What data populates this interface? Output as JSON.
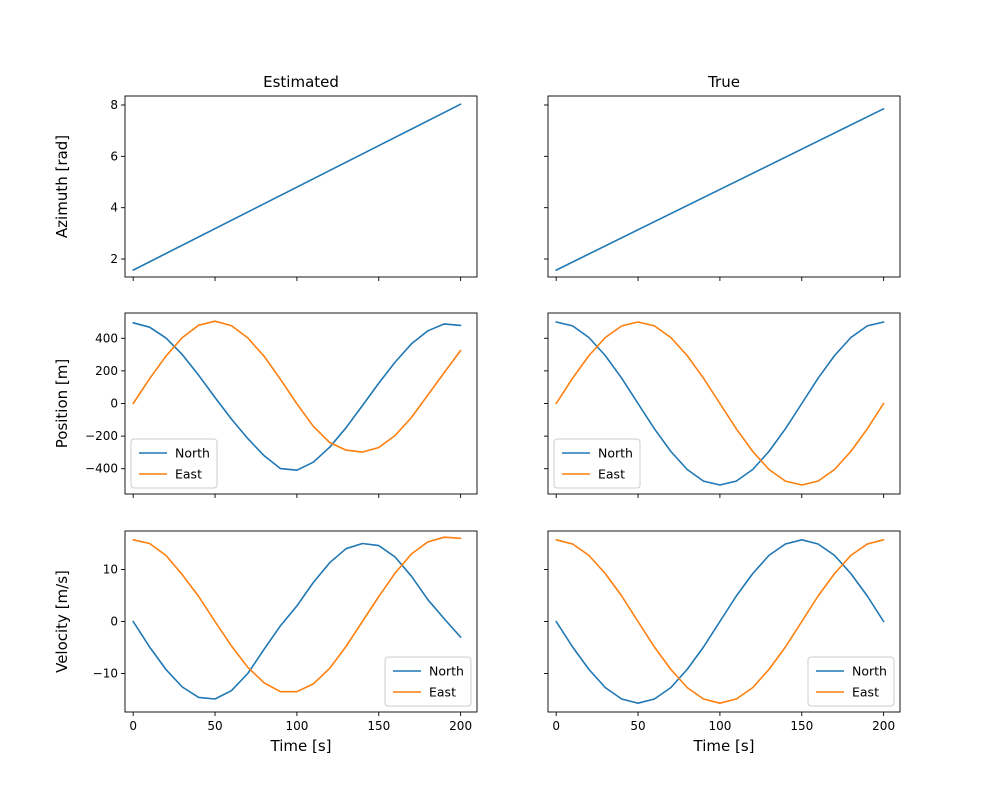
{
  "chart_data": {
    "type": "line",
    "layout": "3x2 subplot grid, shared x axis (Time), shared y axis per row",
    "column_titles": [
      "Estimated",
      "True"
    ],
    "xlabel": "Time [s]",
    "xlim": [
      -5,
      210
    ],
    "xticks": [
      0,
      50,
      100,
      150,
      200
    ],
    "grid": false,
    "colors": {
      "North": "#1f77b4",
      "East": "#ff7f0e",
      "Azimuth": "#1f77b4"
    },
    "rows": [
      {
        "ylabel": "Azimuth [rad]",
        "ylim": [
          1.3,
          8.35
        ],
        "yticks": [
          2,
          4,
          6,
          8
        ],
        "legend": null,
        "panels": [
          {
            "column": "Estimated",
            "series": [
              {
                "legend_label": null,
                "key": "Azimuth",
                "x": [
                  0,
                  200
                ],
                "y": [
                  1.57,
                  8.03
                ]
              }
            ]
          },
          {
            "column": "True",
            "series": [
              {
                "legend_label": null,
                "key": "Azimuth",
                "x": [
                  0,
                  200
                ],
                "y": [
                  1.57,
                  7.85
                ]
              }
            ]
          }
        ]
      },
      {
        "ylabel": "Position [m]",
        "ylim": [
          -555,
          555
        ],
        "yticks": [
          -400,
          -200,
          0,
          200,
          400
        ],
        "legend": "lower left",
        "panels": [
          {
            "column": "Estimated",
            "series": [
              {
                "name": "North",
                "key": "North",
                "x": [
                  0,
                  10,
                  20,
                  30,
                  40,
                  50,
                  60,
                  70,
                  80,
                  90,
                  100,
                  110,
                  120,
                  130,
                  140,
                  150,
                  160,
                  170,
                  180,
                  190,
                  200
                ],
                "y": [
                  495,
                  468,
                  402,
                  300,
                  173,
                  37,
                  -95,
                  -215,
                  -321,
                  -399,
                  -409,
                  -360,
                  -268,
                  -149,
                  -13,
                  125,
                  254,
                  366,
                  446,
                  488,
                  479
                ]
              },
              {
                "name": "East",
                "key": "East",
                "x": [
                  0,
                  10,
                  20,
                  30,
                  40,
                  50,
                  60,
                  70,
                  80,
                  90,
                  100,
                  110,
                  120,
                  130,
                  140,
                  150,
                  160,
                  170,
                  180,
                  190,
                  200
                ],
                "y": [
                  0,
                  152,
                  290,
                  404,
                  480,
                  505,
                  478,
                  402,
                  289,
                  148,
                  -2,
                  -140,
                  -240,
                  -286,
                  -298,
                  -270,
                  -196,
                  -85,
                  52,
                  190,
                  325
                ]
              }
            ]
          },
          {
            "column": "True",
            "series": [
              {
                "name": "North",
                "key": "North",
                "x": [
                  0,
                  10,
                  20,
                  30,
                  40,
                  50,
                  60,
                  70,
                  80,
                  90,
                  100,
                  110,
                  120,
                  130,
                  140,
                  150,
                  160,
                  170,
                  180,
                  190,
                  200
                ],
                "y": [
                  500,
                  476,
                  405,
                  294,
                  155,
                  0,
                  -155,
                  -294,
                  -405,
                  -476,
                  -500,
                  -476,
                  -405,
                  -294,
                  -155,
                  0,
                  155,
                  294,
                  405,
                  476,
                  500
                ]
              },
              {
                "name": "East",
                "key": "East",
                "x": [
                  0,
                  10,
                  20,
                  30,
                  40,
                  50,
                  60,
                  70,
                  80,
                  90,
                  100,
                  110,
                  120,
                  130,
                  140,
                  150,
                  160,
                  170,
                  180,
                  190,
                  200
                ],
                "y": [
                  0,
                  155,
                  294,
                  405,
                  476,
                  500,
                  476,
                  405,
                  294,
                  155,
                  0,
                  -155,
                  -294,
                  -405,
                  -476,
                  -500,
                  -476,
                  -405,
                  -294,
                  -155,
                  0
                ]
              }
            ]
          }
        ]
      },
      {
        "ylabel": "Velocity [m/s]",
        "ylim": [
          -17.4,
          17.4
        ],
        "yticks": [
          -10,
          0,
          10
        ],
        "legend": "lower right",
        "panels": [
          {
            "column": "Estimated",
            "series": [
              {
                "name": "North",
                "key": "North",
                "x": [
                  0,
                  10,
                  20,
                  30,
                  40,
                  50,
                  60,
                  70,
                  80,
                  90,
                  100,
                  110,
                  120,
                  130,
                  140,
                  150,
                  160,
                  170,
                  180,
                  190,
                  200
                ],
                "y": [
                  0,
                  -4.9,
                  -9.2,
                  -12.6,
                  -14.6,
                  -14.9,
                  -13.3,
                  -10.0,
                  -5.3,
                  -0.8,
                  3.0,
                  7.5,
                  11.3,
                  14.0,
                  15.0,
                  14.6,
                  12.4,
                  8.7,
                  4.2,
                  0.5,
                  -3.0
                ]
              },
              {
                "name": "East",
                "key": "East",
                "x": [
                  0,
                  10,
                  20,
                  30,
                  40,
                  50,
                  60,
                  70,
                  80,
                  90,
                  100,
                  110,
                  120,
                  130,
                  140,
                  150,
                  160,
                  170,
                  180,
                  190,
                  200
                ],
                "y": [
                  15.7,
                  15.0,
                  12.7,
                  9.0,
                  4.8,
                  0.0,
                  -4.7,
                  -8.8,
                  -11.8,
                  -13.5,
                  -13.5,
                  -12.0,
                  -9.0,
                  -4.8,
                  0.0,
                  4.8,
                  9.3,
                  13.0,
                  15.3,
                  16.2,
                  16.0
                ]
              }
            ]
          },
          {
            "column": "True",
            "series": [
              {
                "name": "North",
                "key": "North",
                "x": [
                  0,
                  10,
                  20,
                  30,
                  40,
                  50,
                  60,
                  70,
                  80,
                  90,
                  100,
                  110,
                  120,
                  130,
                  140,
                  150,
                  160,
                  170,
                  180,
                  190,
                  200
                ],
                "y": [
                  0,
                  -4.9,
                  -9.2,
                  -12.7,
                  -14.9,
                  -15.7,
                  -14.9,
                  -12.7,
                  -9.2,
                  -4.9,
                  0,
                  4.9,
                  9.2,
                  12.7,
                  14.9,
                  15.7,
                  14.9,
                  12.7,
                  9.2,
                  4.9,
                  0
                ]
              },
              {
                "name": "East",
                "key": "East",
                "x": [
                  0,
                  10,
                  20,
                  30,
                  40,
                  50,
                  60,
                  70,
                  80,
                  90,
                  100,
                  110,
                  120,
                  130,
                  140,
                  150,
                  160,
                  170,
                  180,
                  190,
                  200
                ],
                "y": [
                  15.7,
                  14.9,
                  12.7,
                  9.2,
                  4.9,
                  0,
                  -4.9,
                  -9.2,
                  -12.7,
                  -14.9,
                  -15.7,
                  -14.9,
                  -12.7,
                  -9.2,
                  -4.9,
                  0,
                  4.9,
                  9.2,
                  12.7,
                  14.9,
                  15.7
                ]
              }
            ]
          }
        ]
      }
    ]
  }
}
